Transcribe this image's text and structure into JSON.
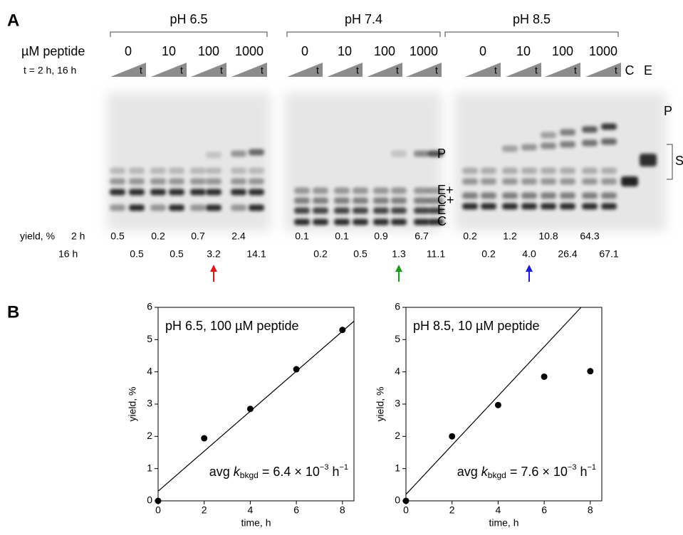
{
  "panel_a": {
    "label": "A",
    "peptide_label": "µM peptide",
    "time_label": "t = 2 h, 16 h",
    "triangle_label": "t",
    "groups": [
      {
        "ph": "pH 6.5",
        "color": "#e8141c",
        "highlight": 2,
        "concentrations": [
          "0",
          "10",
          "100",
          "1000"
        ],
        "yield_2h": [
          "0.5",
          "0.2",
          "0.7",
          "2.4"
        ],
        "yield_16h": [
          "0.5",
          "0.5",
          "3.2",
          "14.1"
        ]
      },
      {
        "ph": "pH 7.4",
        "color": "#1a9a1a",
        "highlight": 2,
        "concentrations": [
          "0",
          "10",
          "100",
          "1000"
        ],
        "yield_2h": [
          "0.1",
          "0.1",
          "0.9",
          "6.7"
        ],
        "yield_16h": [
          "0.2",
          "0.5",
          "1.3",
          "11.1"
        ]
      },
      {
        "ph": "pH 8.5",
        "color": "#1a1ae0",
        "highlight": 1,
        "concentrations": [
          "0",
          "10",
          "100",
          "1000"
        ],
        "yield_2h": [
          "0.2",
          "1.2",
          "10.8",
          "64.3"
        ],
        "yield_16h": [
          "0.2",
          "4.0",
          "26.4",
          "67.1"
        ]
      }
    ],
    "control_lanes": [
      "C",
      "E"
    ],
    "band_labels": [
      "P",
      "E+",
      "C+",
      "E",
      "C"
    ],
    "right_p": "P",
    "right_s": "S",
    "yield_label": "yield, %",
    "row_2h": "2 h",
    "row_16h": "16 h"
  },
  "panel_b_label": "B",
  "chart_data": [
    {
      "type": "scatter",
      "label": "pH 6.5, 100 µM peptide",
      "label_color": "#e8141c",
      "x": [
        0,
        2,
        4,
        6,
        8
      ],
      "values": [
        0,
        1.94,
        2.85,
        4.08,
        5.3
      ],
      "color": "#000000",
      "fit": {
        "x": [
          0,
          8.5
        ],
        "values": [
          0.3,
          5.57
        ]
      },
      "xlim": [
        0,
        8.5
      ],
      "ylim": [
        0,
        6
      ],
      "xticks": [
        0,
        2,
        4,
        6,
        8
      ],
      "yticks": [
        0,
        1,
        2,
        3,
        4,
        5,
        6
      ],
      "xlabel": "time, h",
      "ylabel": "yield, %",
      "annotation": {
        "pre": "avg ",
        "k": "k",
        "sub": "bkgd",
        "mid": " = 6.4 × 10",
        "exp": "−3",
        "unit": " h",
        "unit_exp": "−1"
      }
    },
    {
      "type": "scatter",
      "label": "pH 8.5, 10 µM peptide",
      "label_color": "#1a1ae0",
      "x": [
        0,
        2,
        4,
        6,
        8
      ],
      "values": [
        0,
        2.0,
        2.97,
        3.85,
        4.02
      ],
      "color": "#000000",
      "fit": {
        "x": [
          0,
          7.6
        ],
        "values": [
          0.2,
          6
        ]
      },
      "xlim": [
        0,
        8.5
      ],
      "ylim": [
        0,
        6
      ],
      "xticks": [
        0,
        2,
        4,
        6,
        8
      ],
      "yticks": [
        0,
        1,
        2,
        3,
        4,
        5,
        6
      ],
      "xlabel": "time, h",
      "ylabel": "yield, %",
      "annotation": {
        "pre": "avg ",
        "k": "k",
        "sub": "bkgd",
        "mid": " = 7.6 × 10",
        "exp": "−3",
        "unit": " h",
        "unit_exp": "−1"
      }
    }
  ]
}
